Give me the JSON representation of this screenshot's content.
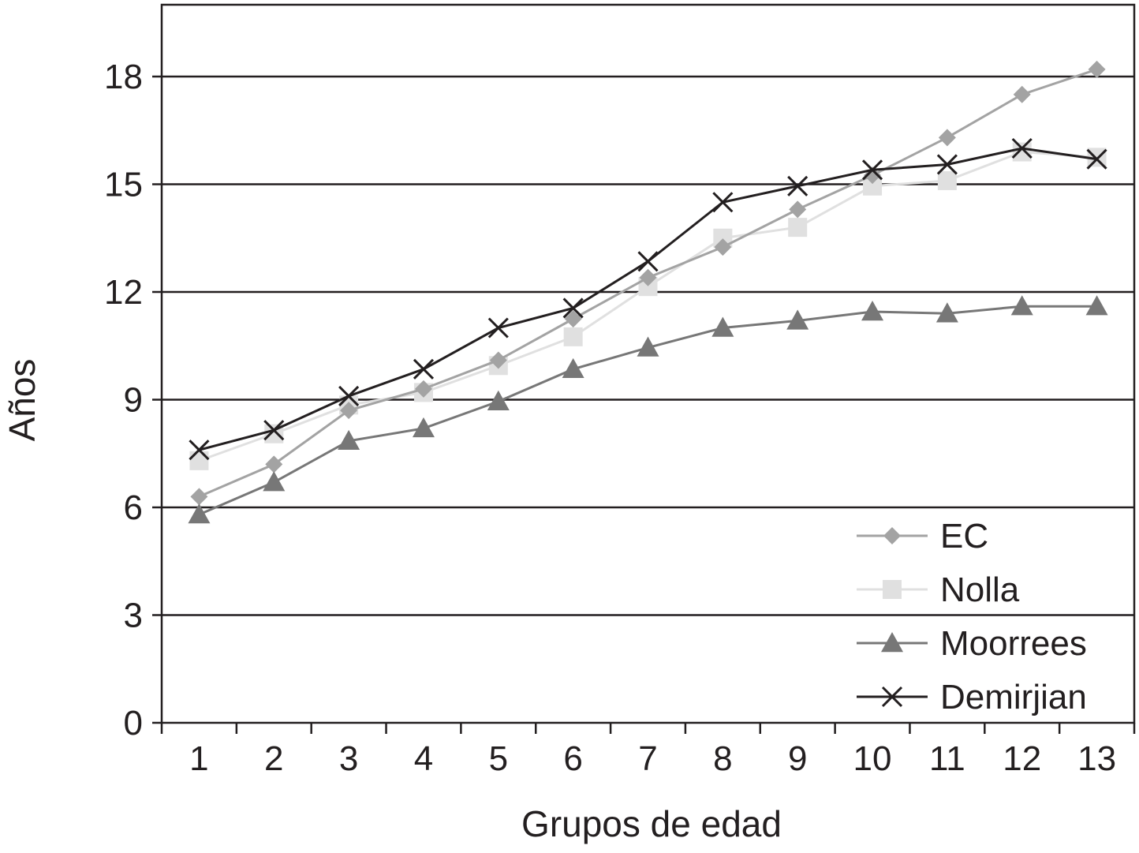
{
  "chart_data": {
    "type": "line",
    "title": "",
    "xlabel": "Grupos de edad",
    "ylabel": "Años",
    "categories": [
      "1",
      "2",
      "3",
      "4",
      "5",
      "6",
      "7",
      "8",
      "9",
      "10",
      "11",
      "12",
      "13"
    ],
    "y_ticks": [
      "0",
      "3",
      "6",
      "9",
      "12",
      "15",
      "18"
    ],
    "ylim": [
      0,
      20
    ],
    "grid": "horizontal",
    "legend_position": "bottom-right",
    "series": [
      {
        "name": "Nolla",
        "marker": "square",
        "color": "#e0e0e0",
        "values": [
          7.3,
          8.05,
          8.85,
          9.2,
          9.95,
          10.75,
          12.15,
          13.5,
          13.8,
          14.95,
          15.1,
          15.9,
          15.75
        ]
      },
      {
        "name": "EC",
        "marker": "diamond",
        "color": "#a3a3a3",
        "values": [
          6.3,
          7.2,
          8.7,
          9.3,
          10.1,
          11.25,
          12.4,
          13.25,
          14.3,
          15.25,
          16.3,
          17.5,
          18.2
        ]
      },
      {
        "name": "Moorrees",
        "marker": "triangle",
        "color": "#777777",
        "values": [
          5.8,
          6.7,
          7.85,
          8.2,
          8.95,
          9.85,
          10.45,
          11.0,
          11.2,
          11.45,
          11.4,
          11.6,
          11.6
        ]
      },
      {
        "name": "Demirjian",
        "marker": "x",
        "color": "#231f20",
        "values": [
          7.6,
          8.15,
          9.1,
          9.85,
          11.0,
          11.55,
          12.85,
          14.5,
          14.95,
          15.4,
          15.55,
          16.0,
          15.7
        ]
      }
    ],
    "legend_order": [
      "EC",
      "Nolla",
      "Moorrees",
      "Demirjian"
    ]
  }
}
